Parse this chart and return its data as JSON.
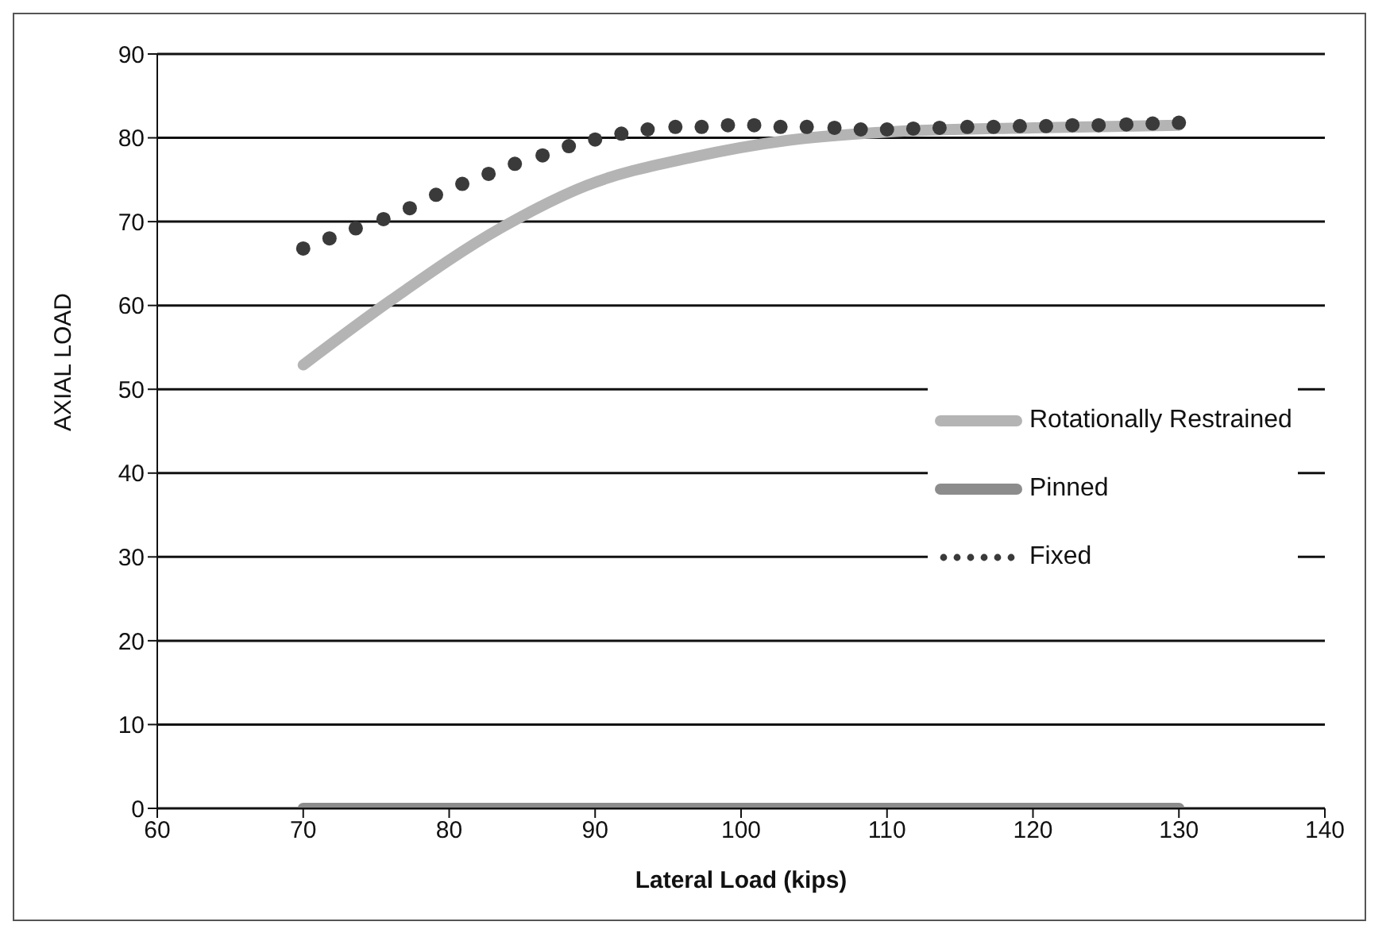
{
  "chart_data": {
    "type": "line",
    "xlabel": "Lateral Load (kips)",
    "ylabel": "AXIAL LOAD",
    "xlim": [
      60,
      140
    ],
    "xticks": [
      60,
      70,
      80,
      90,
      100,
      110,
      120,
      130,
      140
    ],
    "ylim": [
      0,
      90
    ],
    "yticks": [
      0,
      10,
      20,
      30,
      40,
      50,
      60,
      70,
      80,
      90
    ],
    "grid": "y",
    "legend": "right",
    "series": [
      {
        "name": "Rotationally Restrained",
        "color": "#b4b4b4",
        "marker": "none",
        "x": [
          70,
          76,
          83.6,
          89.4,
          96.7,
          103.2,
          110,
          120,
          130
        ],
        "values": [
          52.9,
          60.6,
          69.3,
          74.3,
          77.7,
          79.7,
          80.7,
          81.2,
          81.5
        ]
      },
      {
        "name": "Pinned",
        "color": "#8c8c8c",
        "marker": "none",
        "x": [
          70,
          130
        ],
        "values": [
          0,
          0
        ]
      },
      {
        "name": "Fixed",
        "type": "scatter",
        "color": "#3a3a3a",
        "marker": "circle",
        "x": [
          70,
          71.8,
          73.6,
          75.5,
          77.3,
          79.1,
          80.9,
          82.7,
          84.5,
          86.4,
          88.2,
          90,
          91.8,
          93.6,
          95.5,
          97.3,
          99.1,
          100.9,
          102.7,
          104.5,
          106.4,
          108.2,
          110,
          111.8,
          113.6,
          115.5,
          117.3,
          119.1,
          120.9,
          122.7,
          124.5,
          126.4,
          128.2,
          130
        ],
        "values": [
          66.8,
          68,
          69.2,
          70.3,
          71.6,
          73.2,
          74.5,
          75.7,
          76.9,
          77.9,
          79,
          79.8,
          80.5,
          81,
          81.3,
          81.3,
          81.5,
          81.5,
          81.3,
          81.3,
          81.2,
          81,
          81,
          81.1,
          81.2,
          81.3,
          81.3,
          81.4,
          81.4,
          81.5,
          81.5,
          81.6,
          81.7,
          81.8
        ]
      }
    ]
  }
}
